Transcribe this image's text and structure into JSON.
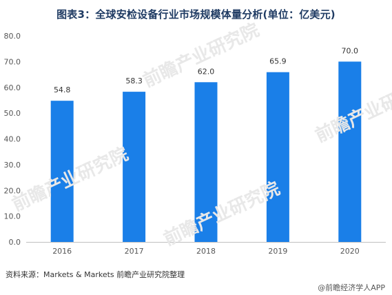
{
  "title": "图表3：全球安检设备行业市场规模体量分析(单位：亿美元)",
  "chart_data": {
    "type": "bar",
    "categories": [
      "2016",
      "2017",
      "2018",
      "2019",
      "2020"
    ],
    "values": [
      54.8,
      58.3,
      62.0,
      65.9,
      70.0
    ],
    "value_labels": [
      "54.8",
      "58.3",
      "62.0",
      "65.9",
      "70.0"
    ],
    "y_ticks": [
      "0.0",
      "10.0",
      "20.0",
      "30.0",
      "40.0",
      "50.0",
      "60.0",
      "70.0",
      "80.0"
    ],
    "ylim": [
      0,
      80
    ],
    "bar_color": "#1a7fe8",
    "grid": false
  },
  "source": "资料来源：Markets & Markets 前瞻产业研究院整理",
  "brand": "@前瞻经济学人APP",
  "watermark": "前瞻产业研究院"
}
